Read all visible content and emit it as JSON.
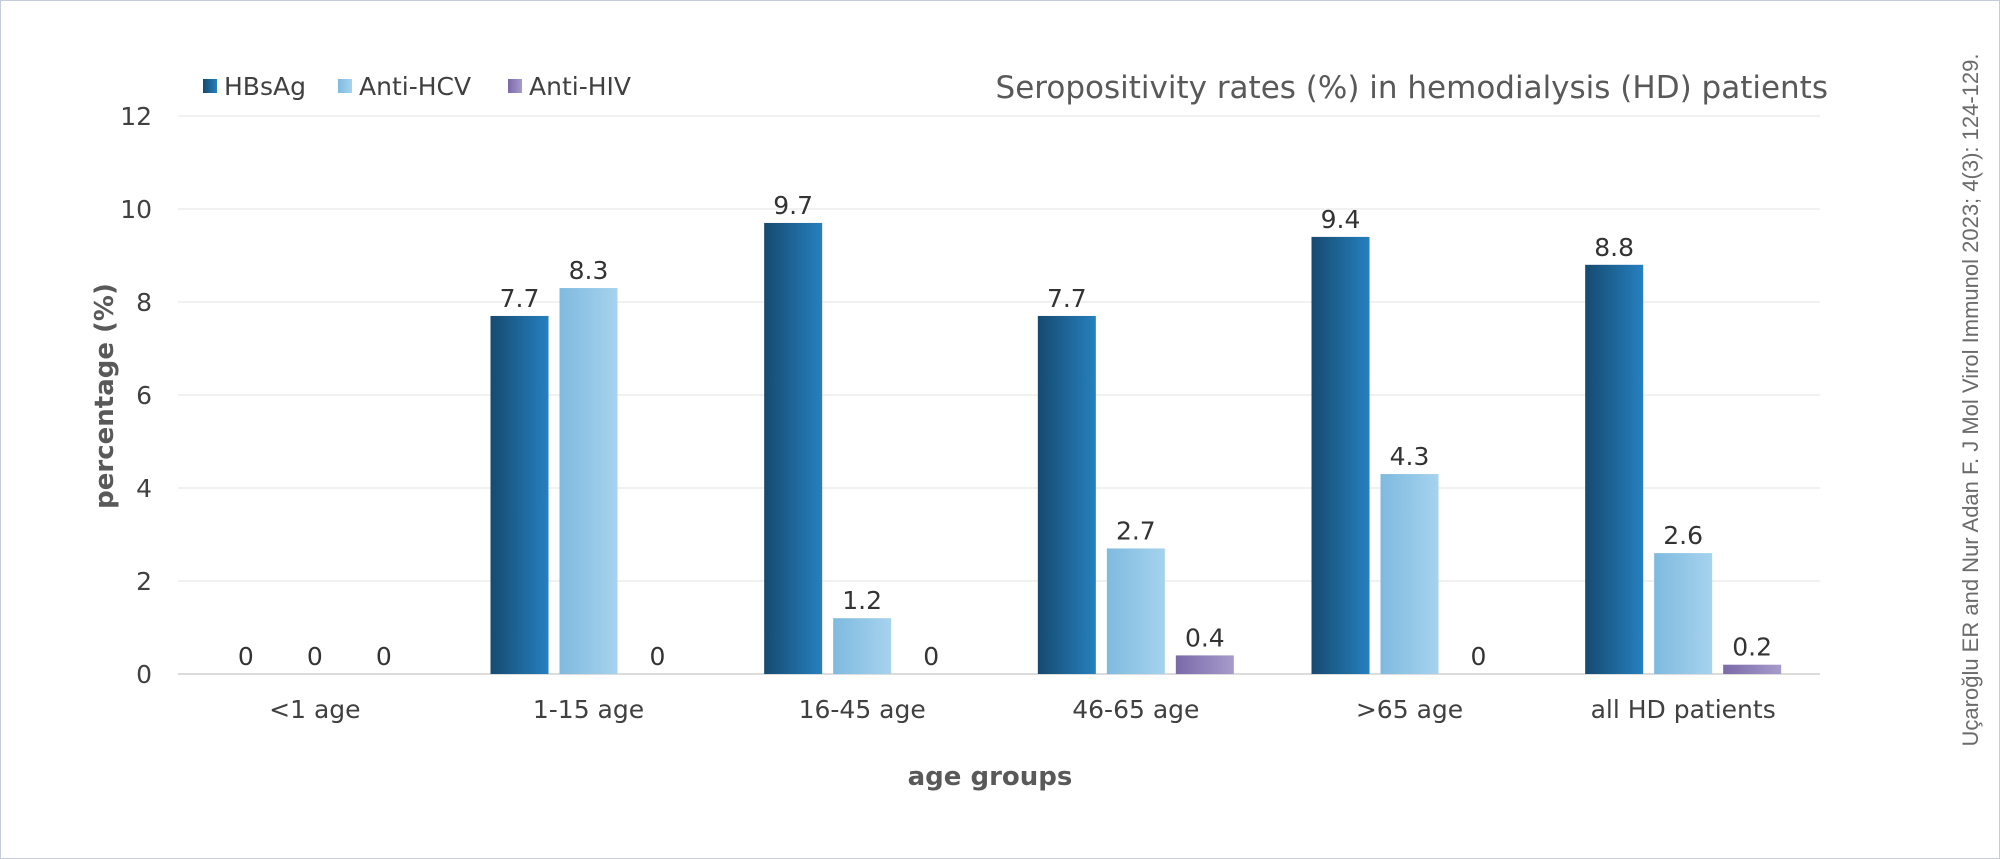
{
  "chart_data": {
    "type": "bar",
    "title": "Seropositivity rates (%) in hemodialysis (HD) patients",
    "xlabel": "age groups",
    "ylabel": "percentage (%)",
    "ylim": [
      0,
      12
    ],
    "yticks": [
      0,
      2,
      4,
      6,
      8,
      10,
      12
    ],
    "grid": true,
    "legend_position": "top-left",
    "categories": [
      "<1 age",
      "1-15 age",
      "16-45 age",
      "46-65 age",
      ">65 age",
      "all HD patients"
    ],
    "series": [
      {
        "name": "HBsAg",
        "color": "#1f6fa8",
        "values": [
          0,
          7.7,
          9.7,
          7.7,
          9.4,
          8.8
        ]
      },
      {
        "name": "Anti-HCV",
        "color": "#8cc4e4",
        "values": [
          0,
          8.3,
          1.2,
          2.7,
          4.3,
          2.6
        ]
      },
      {
        "name": "Anti-HIV",
        "color": "#8a7fb8",
        "values": [
          0,
          0,
          0,
          0.4,
          0,
          0.2
        ]
      }
    ]
  },
  "citation": "Uçaroğlu ER and Nur Adan F. J Mol Virol Immunol 2023; 4(3): 124-129."
}
